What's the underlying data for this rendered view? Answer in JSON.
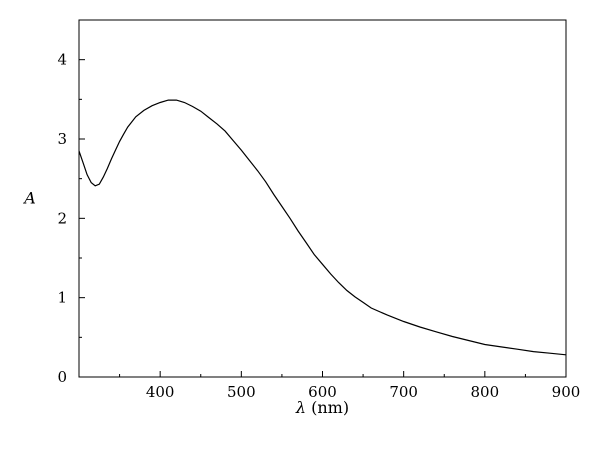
{
  "chart_data": {
    "type": "line",
    "title": "",
    "xlabel_symbol": "λ",
    "xlabel_unit": "(nm)",
    "ylabel": "A",
    "xlim": [
      300,
      900
    ],
    "ylim": [
      0,
      4.5
    ],
    "x_ticks": [
      400,
      500,
      600,
      700,
      800,
      900
    ],
    "y_ticks": [
      0,
      1,
      2,
      3,
      4
    ],
    "x_tick_labels": [
      "400",
      "500",
      "600",
      "700",
      "800",
      "900"
    ],
    "y_tick_labels": [
      "0",
      "1",
      "2",
      "3",
      "4"
    ],
    "grid": false,
    "legend": "none",
    "line_color": "#000000",
    "series": [
      {
        "x": [
          300,
          305,
          310,
          315,
          320,
          325,
          330,
          335,
          340,
          345,
          350,
          355,
          360,
          370,
          380,
          390,
          400,
          410,
          420,
          430,
          440,
          450,
          460,
          470,
          480,
          490,
          500,
          510,
          520,
          530,
          540,
          550,
          560,
          570,
          580,
          590,
          600,
          610,
          620,
          630,
          640,
          650,
          660,
          680,
          700,
          720,
          740,
          760,
          780,
          800,
          820,
          840,
          860,
          880,
          900
        ],
        "y": [
          2.85,
          2.7,
          2.55,
          2.45,
          2.41,
          2.43,
          2.52,
          2.63,
          2.75,
          2.86,
          2.97,
          3.06,
          3.15,
          3.28,
          3.36,
          3.42,
          3.46,
          3.49,
          3.49,
          3.46,
          3.41,
          3.35,
          3.27,
          3.19,
          3.1,
          2.98,
          2.86,
          2.73,
          2.6,
          2.46,
          2.3,
          2.15,
          2.0,
          1.84,
          1.69,
          1.54,
          1.42,
          1.3,
          1.19,
          1.09,
          1.01,
          0.94,
          0.87,
          0.78,
          0.7,
          0.63,
          0.57,
          0.51,
          0.46,
          0.41,
          0.38,
          0.35,
          0.32,
          0.3,
          0.28
        ]
      }
    ]
  }
}
